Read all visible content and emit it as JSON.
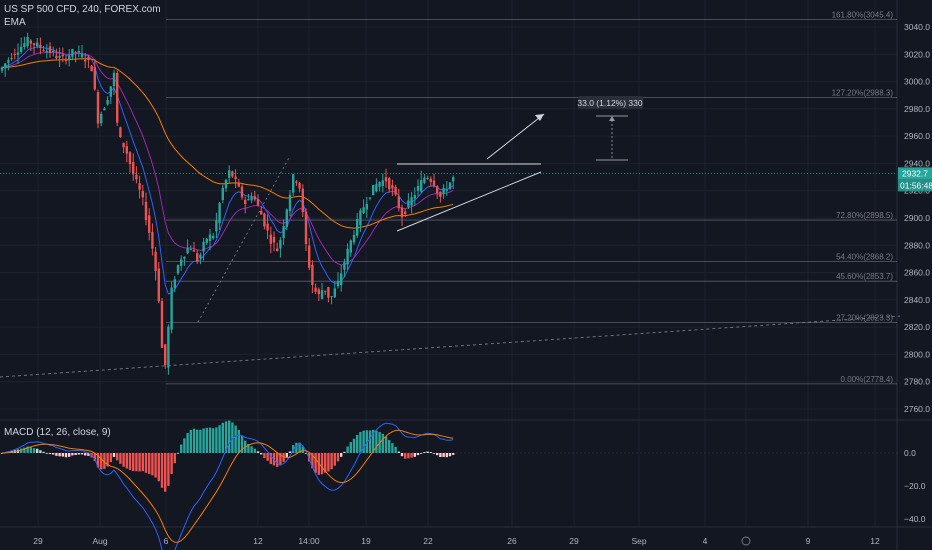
{
  "header": {
    "symbol_title": "US SP 500 CFD, 240, FOREX.com",
    "indicator_ema": "EMA"
  },
  "macd_panel": {
    "label": "MACD (12, 26, close, 9)",
    "y_ticks": [
      "0.0",
      "−20.0",
      "−40.0"
    ]
  },
  "price_axis": {
    "ticks": [
      "3040.0",
      "3020.0",
      "3000.0",
      "2980.0",
      "2960.0",
      "2940.0",
      "2920.0",
      "2900.0",
      "2880.0",
      "2860.0",
      "2840.0",
      "2820.0",
      "2800.0",
      "2780.0",
      "2760.0"
    ],
    "current_price": "2932.7",
    "countdown": "01:56:48"
  },
  "time_axis": {
    "ticks": [
      "29",
      "Aug",
      "6",
      "12",
      "14:00",
      "19",
      "22",
      "26",
      "29",
      "Sep",
      "4",
      "9",
      "12"
    ]
  },
  "fib_levels": [
    {
      "label": "161.80%(3045.4)",
      "value": 3045.4
    },
    {
      "label": "127.20%(2988.3)",
      "value": 2988.3
    },
    {
      "label": "72.80%(2898.5)",
      "value": 2898.5
    },
    {
      "label": "54.40%(2868.2)",
      "value": 2868.2
    },
    {
      "label": "45.60%(2853.7)",
      "value": 2853.7
    },
    {
      "label": "27.20%(2823.3)",
      "value": 2823.3
    },
    {
      "label": "0.00%(2778.4)",
      "value": 2778.4
    }
  ],
  "measure_label": "33.0 (1.12%) 330",
  "colors": {
    "background": "#131722",
    "grid": "#1e222d",
    "up": "#26a69a",
    "down": "#ef5350",
    "ema_fast": "#2962ff",
    "ema_mid": "#9c27b0",
    "ema_slow": "#f57c00",
    "price_label_bg": "#26a69a",
    "countdown_bg": "#131722"
  }
}
